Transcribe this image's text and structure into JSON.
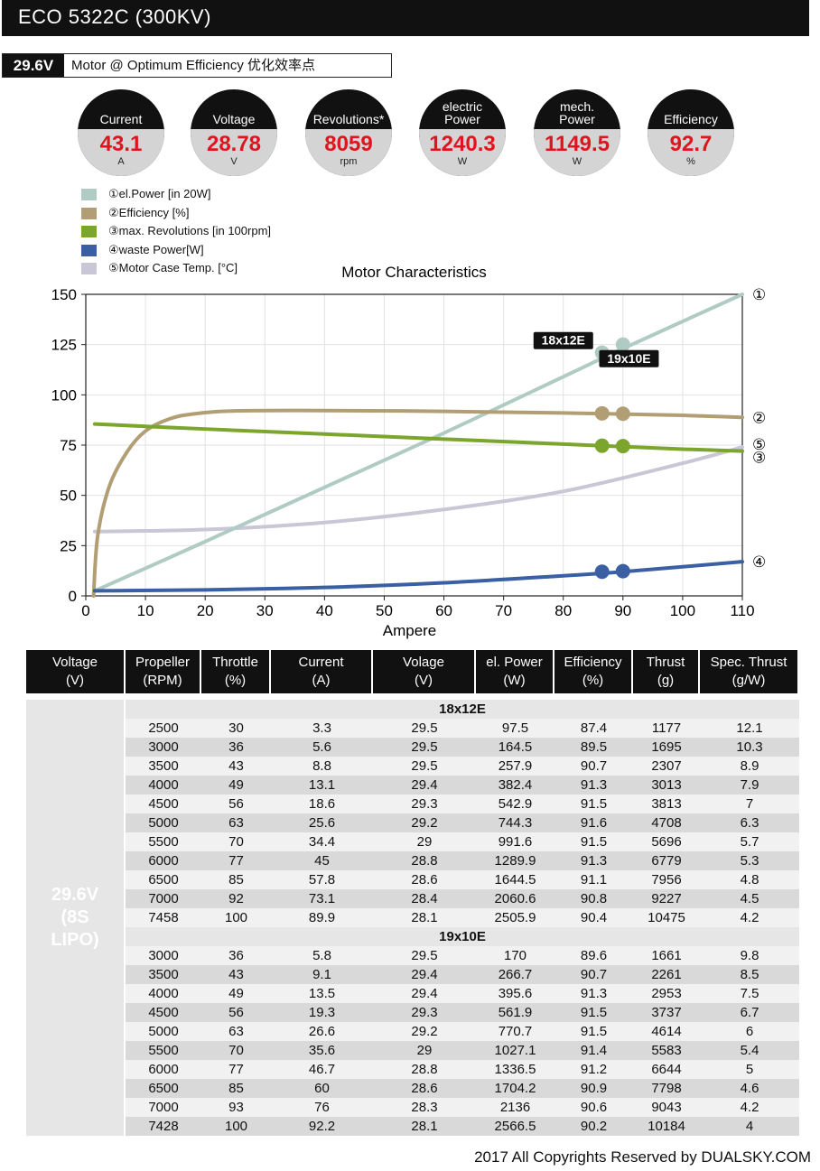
{
  "header": {
    "title": "ECO 5322C (300KV)"
  },
  "subheader": {
    "voltage": "29.6V",
    "label": "Motor @ Optimum Efficiency  优化效率点"
  },
  "gauges": [
    {
      "label": "Current",
      "value": "43.1",
      "unit": "A"
    },
    {
      "label": "Voltage",
      "value": "28.78",
      "unit": "V"
    },
    {
      "label": "Revolutions*",
      "value": "8059",
      "unit": "rpm"
    },
    {
      "label": "electric Power",
      "value": "1240.3",
      "unit": "W"
    },
    {
      "label": "mech. Power",
      "value": "1149.5",
      "unit": "W"
    },
    {
      "label": "Efficiency",
      "value": "92.7",
      "unit": "%"
    }
  ],
  "legend": [
    {
      "text": "①el.Power [in 20W]",
      "color": "#b0cbc3"
    },
    {
      "text": "②Efficiency [%]",
      "color": "#b29e74"
    },
    {
      "text": "③max. Revolutions [in 100rpm]",
      "color": "#7ba52c"
    },
    {
      "text": "④waste Power[W]",
      "color": "#3a5fa3"
    },
    {
      "text": "⑤Motor Case Temp. [°C]",
      "color": "#c9c6d6"
    }
  ],
  "chart_data": {
    "type": "line",
    "title": "Motor Characteristics",
    "xlabel": "Ampere",
    "ylabel": "",
    "xlim": [
      0,
      110
    ],
    "ylim": [
      0,
      150
    ],
    "xticks": [
      0,
      10,
      20,
      30,
      40,
      50,
      60,
      70,
      80,
      90,
      100,
      110
    ],
    "yticks": [
      0,
      25,
      50,
      75,
      100,
      125,
      150
    ],
    "grid": true,
    "series": [
      {
        "name": "①el.Power [in 20W]",
        "marker": "①",
        "color": "#b0cbc3",
        "points": [
          [
            1.5,
            2.5
          ],
          [
            20,
            27
          ],
          [
            40,
            54
          ],
          [
            60,
            81
          ],
          [
            80,
            109
          ],
          [
            90,
            123
          ],
          [
            110,
            150
          ]
        ],
        "highlight": [
          [
            86.5,
            121
          ],
          [
            90,
            125
          ]
        ]
      },
      {
        "name": "②Efficiency [%]",
        "marker": "②",
        "color": "#b29e74",
        "points": [
          [
            1.3,
            0
          ],
          [
            2,
            30
          ],
          [
            4,
            55
          ],
          [
            7,
            72
          ],
          [
            10,
            82
          ],
          [
            14,
            88
          ],
          [
            18,
            90.5
          ],
          [
            25,
            92
          ],
          [
            40,
            92.2
          ],
          [
            60,
            91.8
          ],
          [
            80,
            91
          ],
          [
            100,
            89.8
          ],
          [
            110,
            88.8
          ]
        ],
        "highlight": [
          [
            86.5,
            90.8
          ],
          [
            90,
            90.6
          ]
        ]
      },
      {
        "name": "③max. Revolutions [in 100rpm]",
        "marker": "③",
        "color": "#7ba52c",
        "points": [
          [
            1.5,
            85.5
          ],
          [
            20,
            83
          ],
          [
            40,
            80.5
          ],
          [
            60,
            78
          ],
          [
            80,
            75.5
          ],
          [
            100,
            73
          ],
          [
            110,
            72
          ]
        ],
        "highlight": [
          [
            86.5,
            74.7
          ],
          [
            90,
            74.5
          ]
        ]
      },
      {
        "name": "④waste Power[W]",
        "marker": "④",
        "color": "#3a5fa3",
        "points": [
          [
            1.5,
            2.5
          ],
          [
            20,
            3
          ],
          [
            40,
            4.2
          ],
          [
            60,
            6.5
          ],
          [
            80,
            10
          ],
          [
            90,
            12
          ],
          [
            110,
            17
          ]
        ],
        "highlight": [
          [
            86.5,
            12
          ],
          [
            90,
            12.3
          ]
        ]
      },
      {
        "name": "⑤Motor Case Temp. [°C]",
        "marker": "⑤",
        "color": "#c9c6d6",
        "points": [
          [
            1.5,
            32
          ],
          [
            20,
            33
          ],
          [
            40,
            36.5
          ],
          [
            60,
            43
          ],
          [
            80,
            52
          ],
          [
            100,
            66
          ],
          [
            110,
            74
          ]
        ],
        "highlight": []
      }
    ],
    "annotations": [
      {
        "text": "18x12E",
        "x": 85,
        "y": 127
      },
      {
        "text": "19x10E",
        "x": 96,
        "y": 118
      }
    ]
  },
  "table": {
    "headers": [
      "Voltage (V)",
      "Propeller (RPM)",
      "Throttle (%)",
      "Current (A)",
      "Volage (V)",
      "el. Power (W)",
      "Efficiency (%)",
      "Thrust (g)",
      "Spec. Thrust (g/W)"
    ],
    "voltage_label": "29.6V (8S LIPO)",
    "groups": [
      {
        "name": "18x12E",
        "rows": [
          [
            "2500",
            "30",
            "3.3",
            "29.5",
            "97.5",
            "87.4",
            "1177",
            "12.1"
          ],
          [
            "3000",
            "36",
            "5.6",
            "29.5",
            "164.5",
            "89.5",
            "1695",
            "10.3"
          ],
          [
            "3500",
            "43",
            "8.8",
            "29.5",
            "257.9",
            "90.7",
            "2307",
            "8.9"
          ],
          [
            "4000",
            "49",
            "13.1",
            "29.4",
            "382.4",
            "91.3",
            "3013",
            "7.9"
          ],
          [
            "4500",
            "56",
            "18.6",
            "29.3",
            "542.9",
            "91.5",
            "3813",
            "7"
          ],
          [
            "5000",
            "63",
            "25.6",
            "29.2",
            "744.3",
            "91.6",
            "4708",
            "6.3"
          ],
          [
            "5500",
            "70",
            "34.4",
            "29",
            "991.6",
            "91.5",
            "5696",
            "5.7"
          ],
          [
            "6000",
            "77",
            "45",
            "28.8",
            "1289.9",
            "91.3",
            "6779",
            "5.3"
          ],
          [
            "6500",
            "85",
            "57.8",
            "28.6",
            "1644.5",
            "91.1",
            "7956",
            "4.8"
          ],
          [
            "7000",
            "92",
            "73.1",
            "28.4",
            "2060.6",
            "90.8",
            "9227",
            "4.5"
          ],
          [
            "7458",
            "100",
            "89.9",
            "28.1",
            "2505.9",
            "90.4",
            "10475",
            "4.2"
          ]
        ]
      },
      {
        "name": "19x10E",
        "rows": [
          [
            "3000",
            "36",
            "5.8",
            "29.5",
            "170",
            "89.6",
            "1661",
            "9.8"
          ],
          [
            "3500",
            "43",
            "9.1",
            "29.4",
            "266.7",
            "90.7",
            "2261",
            "8.5"
          ],
          [
            "4000",
            "49",
            "13.5",
            "29.4",
            "395.6",
            "91.3",
            "2953",
            "7.5"
          ],
          [
            "4500",
            "56",
            "19.3",
            "29.3",
            "561.9",
            "91.5",
            "3737",
            "6.7"
          ],
          [
            "5000",
            "63",
            "26.6",
            "29.2",
            "770.7",
            "91.5",
            "4614",
            "6"
          ],
          [
            "5500",
            "70",
            "35.6",
            "29",
            "1027.1",
            "91.4",
            "5583",
            "5.4"
          ],
          [
            "6000",
            "77",
            "46.7",
            "28.8",
            "1336.5",
            "91.2",
            "6644",
            "5"
          ],
          [
            "6500",
            "85",
            "60",
            "28.6",
            "1704.2",
            "90.9",
            "7798",
            "4.6"
          ],
          [
            "7000",
            "93",
            "76",
            "28.3",
            "2136",
            "90.6",
            "9043",
            "4.2"
          ],
          [
            "7428",
            "100",
            "92.2",
            "28.1",
            "2566.5",
            "90.2",
            "10184",
            "4"
          ]
        ]
      }
    ]
  },
  "footer": {
    "text": "2017 All Copyrights Reserved by DUALSKY.COM"
  }
}
